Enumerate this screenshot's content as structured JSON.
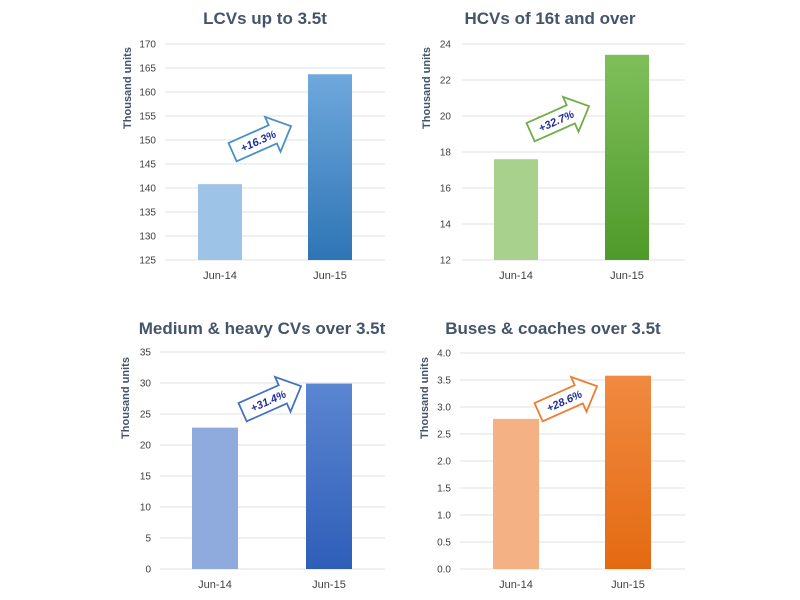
{
  "chart_data": [
    {
      "type": "bar",
      "title": "LCVs up to 3.5t",
      "ylabel": "Thousand units",
      "categories": [
        "Jun-14",
        "Jun-15"
      ],
      "values": [
        140.8,
        163.7
      ],
      "ylim": [
        125,
        170
      ],
      "yticks": [
        "125",
        "130",
        "135",
        "140",
        "145",
        "150",
        "155",
        "160",
        "165",
        "170"
      ],
      "grid": true,
      "change_label": "+16.3%",
      "colors": {
        "bar1": "#9DC3E6",
        "bar2_top": "#6FA8DC",
        "bar2_bottom": "#2E75B6",
        "arrow": "#4A90C8"
      }
    },
    {
      "type": "bar",
      "title": "HCVs of 16t and over",
      "ylabel": "Thousand units",
      "categories": [
        "Jun-14",
        "Jun-15"
      ],
      "values": [
        17.6,
        23.4
      ],
      "ylim": [
        12,
        24
      ],
      "yticks": [
        "12",
        "14",
        "16",
        "18",
        "20",
        "22",
        "24"
      ],
      "grid": true,
      "change_label": "+32.7%",
      "colors": {
        "bar1": "#A9D18E",
        "bar2_top": "#7FBF5A",
        "bar2_bottom": "#4E9A2A",
        "arrow": "#70AD47"
      }
    },
    {
      "type": "bar",
      "title": "Medium & heavy CVs over 3.5t",
      "ylabel": "Thousand units",
      "categories": [
        "Jun-14",
        "Jun-15"
      ],
      "values": [
        22.8,
        29.9
      ],
      "ylim": [
        0,
        35
      ],
      "yticks": [
        "0",
        "5",
        "10",
        "15",
        "20",
        "25",
        "30",
        "35"
      ],
      "grid": true,
      "change_label": "+31.4%",
      "colors": {
        "bar1": "#8FAADC",
        "bar2_top": "#5B86D1",
        "bar2_bottom": "#2F5EB8",
        "arrow": "#4472C4"
      }
    },
    {
      "type": "bar",
      "title": "Buses & coaches over 3.5t",
      "ylabel": "Thousand units",
      "categories": [
        "Jun-14",
        "Jun-15"
      ],
      "values": [
        2.78,
        3.58
      ],
      "ylim": [
        0,
        4
      ],
      "yticks": [
        "0.0",
        "0.5",
        "1.0",
        "1.5",
        "2.0",
        "2.5",
        "3.0",
        "3.5",
        "4.0"
      ],
      "grid": true,
      "change_label": "+28.6%",
      "colors": {
        "bar1": "#F4B183",
        "bar2_top": "#F08A40",
        "bar2_bottom": "#E46A12",
        "arrow": "#ED7D31"
      }
    }
  ]
}
